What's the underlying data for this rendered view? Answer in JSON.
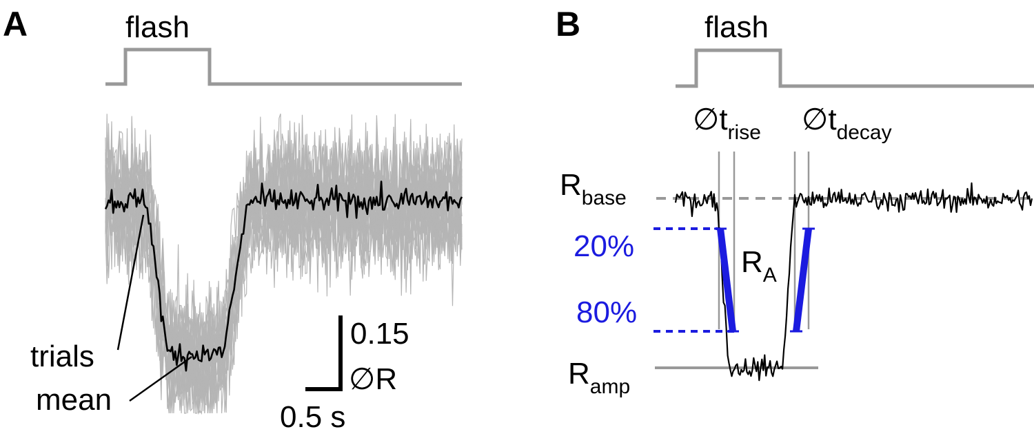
{
  "figure": {
    "colors": {
      "stimulus": "#999999",
      "trials": "#b5b5b5",
      "mean": "#000000",
      "threshold": "#1b1bdf",
      "baseline": "#999999"
    }
  },
  "chart_data": [
    {
      "type": "line",
      "panel": "A",
      "stimulus_label": "flash",
      "labels": {
        "trials": "trials",
        "mean": "mean"
      },
      "scale_bar": {
        "y_label": "0.15",
        "y_unit": "∅R",
        "x_label": "0.5 s"
      },
      "x_range": [
        0,
        3.0
      ],
      "flash_interval": [
        0.15,
        0.85
      ],
      "n_trials": 20,
      "mean_trace": {
        "baseline": 0.0,
        "response_amplitude": -0.37,
        "onset_s": 0.35,
        "drop_end_s": 0.52,
        "recovery_start_s": 0.99,
        "recovery_end_s": 1.2,
        "noise_sd": 0.015
      }
    },
    {
      "type": "line",
      "panel": "B",
      "stimulus_label": "flash",
      "annotations": {
        "r_base": "R",
        "r_base_sub": "base",
        "r_amp": "R",
        "r_amp_sub": "amp",
        "r_a": "R",
        "r_a_sub": "A",
        "t_rise": "∅t",
        "t_rise_sub": "rise",
        "t_decay": "∅t",
        "t_decay_sub": "decay",
        "pct_high": "20%",
        "pct_low": "80%"
      },
      "x_range": [
        0,
        3.0
      ],
      "flash_interval": [
        0.15,
        0.85
      ],
      "thresholds": [
        0.2,
        0.8
      ],
      "trace": {
        "baseline": 0.0,
        "response_amplitude": -0.37,
        "onset_s": 0.35,
        "drop_end_s": 0.45,
        "recovery_start_s": 0.9,
        "recovery_end_s": 1.0,
        "noise_sd": 0.012
      }
    }
  ]
}
